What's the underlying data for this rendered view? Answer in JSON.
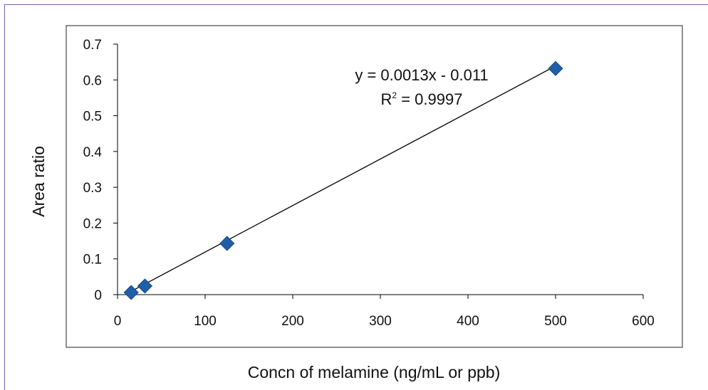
{
  "chart_data": {
    "type": "scatter",
    "title": "",
    "xlabel": "Concn of melamine (ng/mL or ppb)",
    "ylabel": "Area ratio",
    "xlim": [
      0,
      600
    ],
    "ylim": [
      0,
      0.7
    ],
    "xticks": [
      0,
      100,
      200,
      300,
      400,
      500,
      600
    ],
    "yticks": [
      0,
      0.1,
      0.2,
      0.3,
      0.4,
      0.5,
      0.6,
      0.7
    ],
    "series": [
      {
        "marker": "diamond",
        "color": "#1f5fa8",
        "x": [
          15.6,
          31.25,
          125,
          500
        ],
        "y": [
          0.006,
          0.024,
          0.143,
          0.632
        ]
      }
    ],
    "trendline": {
      "slope": 0.0013,
      "intercept": -0.011,
      "equation_main": "y = 0.0013x - 0.011",
      "r2_prefix": "R",
      "r2_sup": "2",
      "r2_rest": " = 0.9997",
      "color": "#000000"
    },
    "grid": false,
    "legend": "none"
  }
}
